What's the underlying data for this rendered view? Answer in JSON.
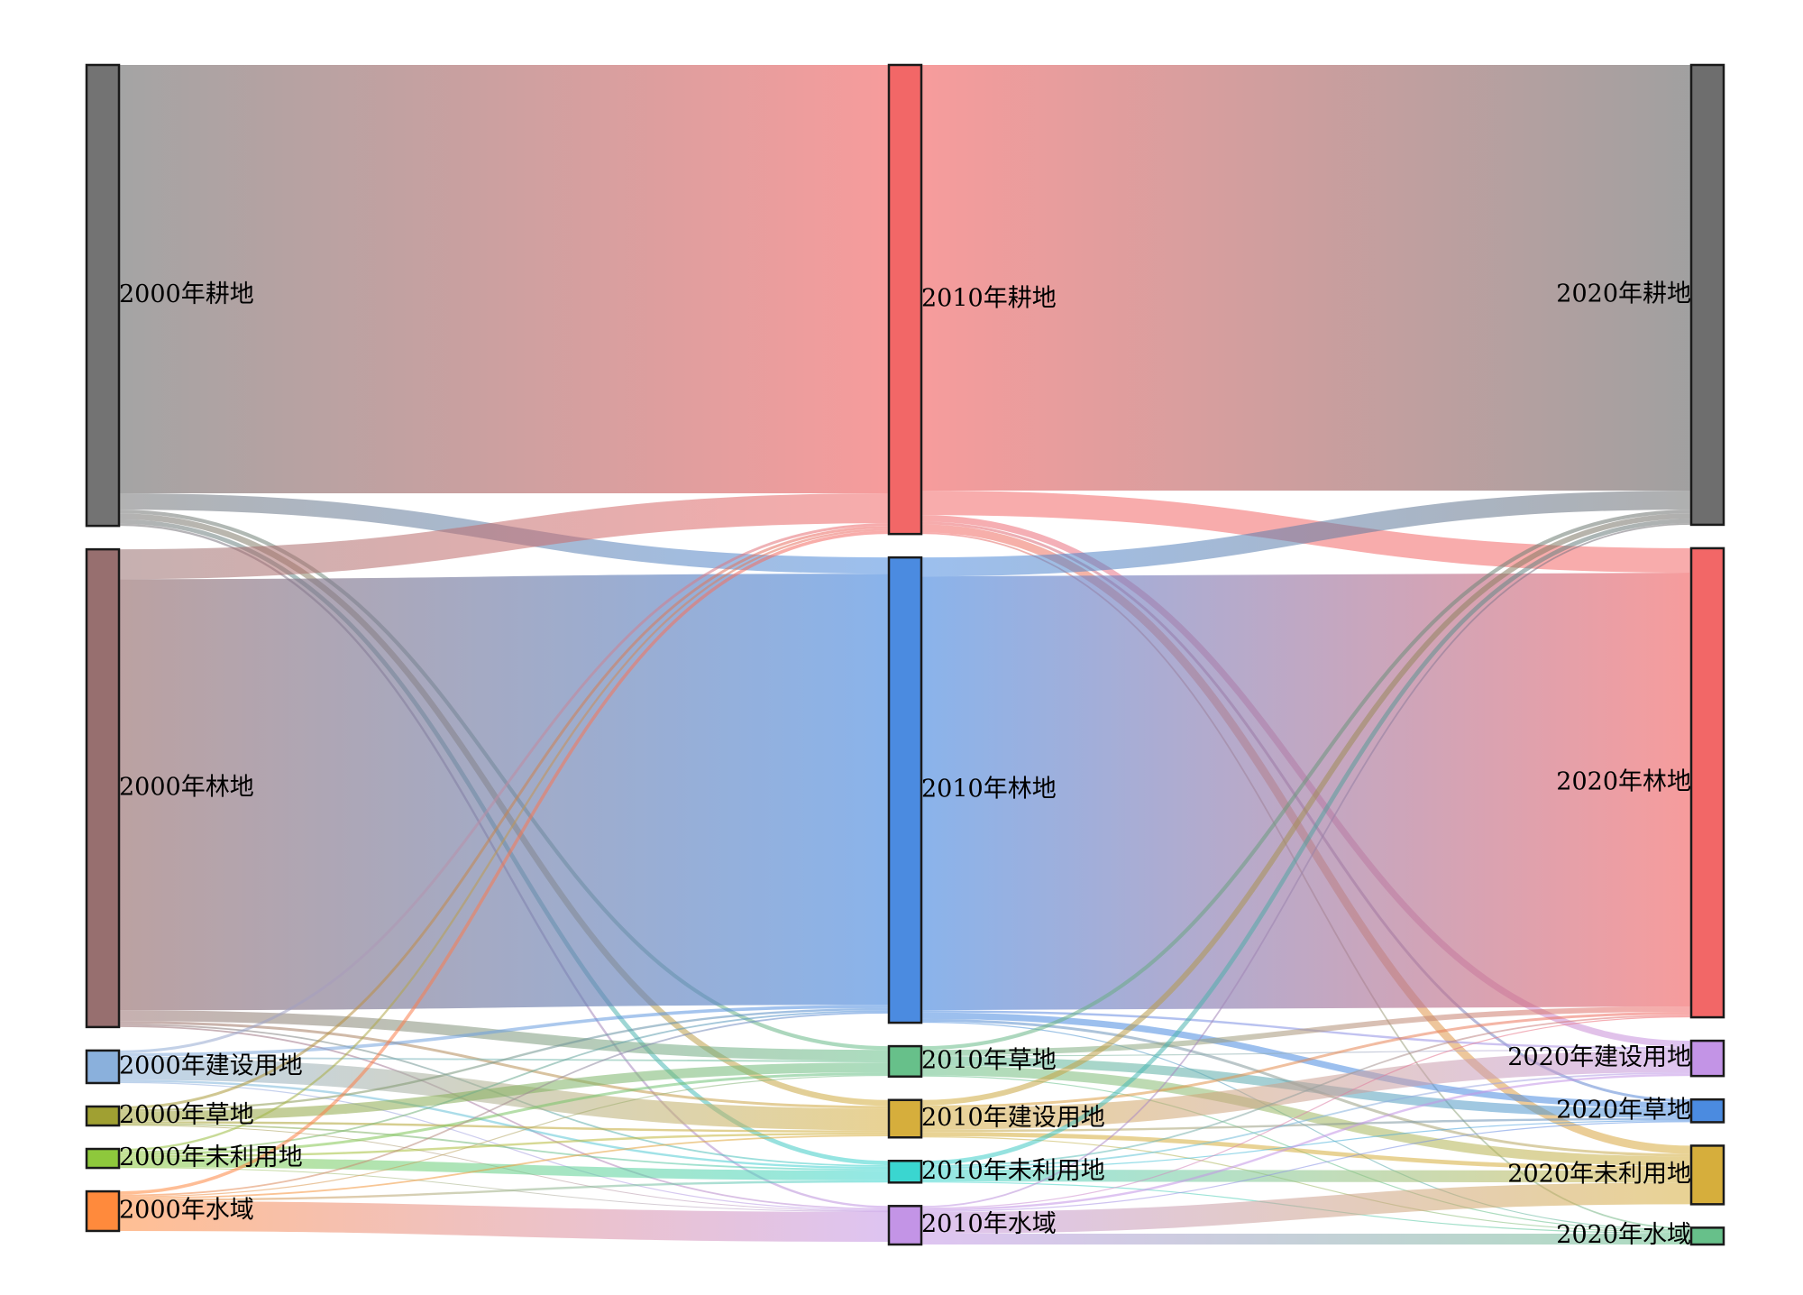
{
  "chart_data": {
    "type": "sankey",
    "columns": [
      {
        "year": "2000",
        "nodes": [
          {
            "id": "c0-gengdi",
            "label": "2000年耕地",
            "color": "#737373"
          },
          {
            "id": "c0-lindi",
            "label": "2000年林地",
            "color": "#976f6f"
          },
          {
            "id": "c0-jianshe",
            "label": "2000年建设用地",
            "color": "#8ab0dc"
          },
          {
            "id": "c0-caodi",
            "label": "2000年草地",
            "color": "#a0a032"
          },
          {
            "id": "c0-weili",
            "label": "2000年未利用地",
            "color": "#8ec83c"
          },
          {
            "id": "c0-shuiyu",
            "label": "2000年水域",
            "color": "#ff8a3c"
          }
        ]
      },
      {
        "year": "2010",
        "nodes": [
          {
            "id": "c1-gengdi",
            "label": "2010年耕地",
            "color": "#f26767"
          },
          {
            "id": "c1-lindi",
            "label": "2010年林地",
            "color": "#4b8be0"
          },
          {
            "id": "c1-caodi",
            "label": "2010年草地",
            "color": "#67c08a"
          },
          {
            "id": "c1-jianshe",
            "label": "2010年建设用地",
            "color": "#d6ae3c"
          },
          {
            "id": "c1-weili",
            "label": "2010年未利用地",
            "color": "#3ad6d0"
          },
          {
            "id": "c1-shuiyu",
            "label": "2010年水域",
            "color": "#c394e6"
          }
        ]
      },
      {
        "year": "2020",
        "nodes": [
          {
            "id": "c2-gengdi",
            "label": "2020年耕地",
            "color": "#6e6e6e"
          },
          {
            "id": "c2-lindi",
            "label": "2020年林地",
            "color": "#f26767"
          },
          {
            "id": "c2-jianshe",
            "label": "2020年建设用地",
            "color": "#c394e6"
          },
          {
            "id": "c2-caodi",
            "label": "2020年草地",
            "color": "#4b8be0"
          },
          {
            "id": "c2-weili",
            "label": "2020年未利用地",
            "color": "#d6ae3c"
          },
          {
            "id": "c2-shuiyu",
            "label": "2020年水域",
            "color": "#67c08a"
          }
        ]
      }
    ],
    "flows": [
      [
        "c0-gengdi",
        "c1-gengdi",
        790
      ],
      [
        "c0-gengdi",
        "c1-lindi",
        30
      ],
      [
        "c0-gengdi",
        "c1-caodi",
        7
      ],
      [
        "c0-gengdi",
        "c1-jianshe",
        11
      ],
      [
        "c0-gengdi",
        "c1-weili",
        8
      ],
      [
        "c0-gengdi",
        "c1-shuiyu",
        4
      ],
      [
        "c0-lindi",
        "c1-gengdi",
        55
      ],
      [
        "c0-lindi",
        "c1-lindi",
        795
      ],
      [
        "c0-lindi",
        "c1-caodi",
        20
      ],
      [
        "c0-lindi",
        "c1-jianshe",
        5
      ],
      [
        "c0-lindi",
        "c1-weili",
        3
      ],
      [
        "c0-lindi",
        "c1-shuiyu",
        3
      ],
      [
        "c0-jianshe",
        "c1-gengdi",
        5
      ],
      [
        "c0-jianshe",
        "c1-lindi",
        6
      ],
      [
        "c0-jianshe",
        "c1-caodi",
        3
      ],
      [
        "c0-jianshe",
        "c1-jianshe",
        40
      ],
      [
        "c0-jianshe",
        "c1-weili",
        4
      ],
      [
        "c0-jianshe",
        "c1-shuiyu",
        2
      ],
      [
        "c0-caodi",
        "c1-gengdi",
        5
      ],
      [
        "c0-caodi",
        "c1-lindi",
        4
      ],
      [
        "c0-caodi",
        "c1-caodi",
        18
      ],
      [
        "c0-caodi",
        "c1-jianshe",
        4
      ],
      [
        "c0-caodi",
        "c1-weili",
        3
      ],
      [
        "c0-caodi",
        "c1-shuiyu",
        1
      ],
      [
        "c0-weili",
        "c1-gengdi",
        4
      ],
      [
        "c0-weili",
        "c1-lindi",
        3
      ],
      [
        "c0-weili",
        "c1-caodi",
        5
      ],
      [
        "c0-weili",
        "c1-jianshe",
        4
      ],
      [
        "c0-weili",
        "c1-weili",
        18
      ],
      [
        "c0-weili",
        "c1-shuiyu",
        1
      ],
      [
        "c0-shuiyu",
        "c1-gengdi",
        6
      ],
      [
        "c0-shuiyu",
        "c1-lindi",
        3
      ],
      [
        "c0-shuiyu",
        "c1-caodi",
        2
      ],
      [
        "c0-shuiyu",
        "c1-jianshe",
        3
      ],
      [
        "c0-shuiyu",
        "c1-weili",
        4
      ],
      [
        "c0-shuiyu",
        "c1-shuiyu",
        55
      ],
      [
        "c1-gengdi",
        "c2-gengdi",
        785
      ],
      [
        "c1-gengdi",
        "c2-lindi",
        45
      ],
      [
        "c1-gengdi",
        "c2-jianshe",
        12
      ],
      [
        "c1-gengdi",
        "c2-caodi",
        5
      ],
      [
        "c1-gengdi",
        "c2-weili",
        15
      ],
      [
        "c1-gengdi",
        "c2-shuiyu",
        3
      ],
      [
        "c1-lindi",
        "c2-gengdi",
        35
      ],
      [
        "c1-lindi",
        "c2-lindi",
        800
      ],
      [
        "c1-lindi",
        "c2-jianshe",
        4
      ],
      [
        "c1-lindi",
        "c2-caodi",
        12
      ],
      [
        "c1-lindi",
        "c2-weili",
        5
      ],
      [
        "c1-lindi",
        "c2-shuiyu",
        2
      ],
      [
        "c1-caodi",
        "c2-gengdi",
        7
      ],
      [
        "c1-caodi",
        "c2-lindi",
        10
      ],
      [
        "c1-caodi",
        "c2-jianshe",
        2
      ],
      [
        "c1-caodi",
        "c2-caodi",
        17
      ],
      [
        "c1-caodi",
        "c2-weili",
        18
      ],
      [
        "c1-caodi",
        "c2-shuiyu",
        2
      ],
      [
        "c1-jianshe",
        "c2-gengdi",
        10
      ],
      [
        "c1-jianshe",
        "c2-lindi",
        5
      ],
      [
        "c1-jianshe",
        "c2-jianshe",
        40
      ],
      [
        "c1-jianshe",
        "c2-caodi",
        4
      ],
      [
        "c1-jianshe",
        "c2-weili",
        8
      ],
      [
        "c1-jianshe",
        "c2-shuiyu",
        2
      ],
      [
        "c1-weili",
        "c2-gengdi",
        8
      ],
      [
        "c1-weili",
        "c2-lindi",
        3
      ],
      [
        "c1-weili",
        "c2-jianshe",
        3
      ],
      [
        "c1-weili",
        "c2-caodi",
        2
      ],
      [
        "c1-weili",
        "c2-weili",
        22
      ],
      [
        "c1-weili",
        "c2-shuiyu",
        2
      ],
      [
        "c1-shuiyu",
        "c2-gengdi",
        3
      ],
      [
        "c1-shuiyu",
        "c2-lindi",
        2
      ],
      [
        "c1-shuiyu",
        "c2-jianshe",
        4
      ],
      [
        "c1-shuiyu",
        "c2-caodi",
        2
      ],
      [
        "c1-shuiyu",
        "c2-weili",
        40
      ],
      [
        "c1-shuiyu",
        "c2-shuiyu",
        20
      ]
    ]
  }
}
